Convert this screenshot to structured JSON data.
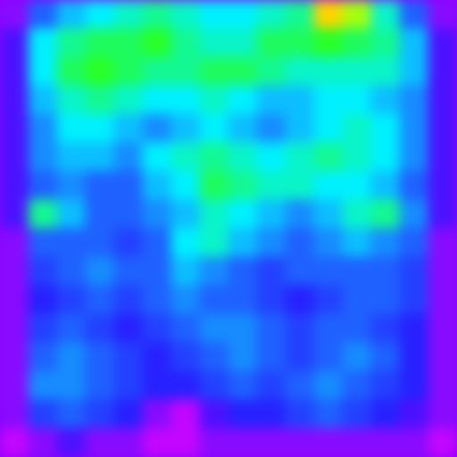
{
  "chart_data": {
    "type": "heatmap",
    "zlim": [
      0,
      1
    ],
    "tick_labels": false,
    "cells": [
      [
        0.1,
        0.3,
        0.4,
        0.45,
        0.5,
        0.55,
        0.5,
        0.45,
        0.45,
        0.5,
        0.55,
        0.85,
        0.75,
        0.5,
        0.3,
        0.1
      ],
      [
        0.15,
        0.45,
        0.55,
        0.6,
        0.6,
        0.65,
        0.55,
        0.5,
        0.5,
        0.6,
        0.6,
        0.65,
        0.6,
        0.55,
        0.4,
        0.15
      ],
      [
        0.15,
        0.45,
        0.6,
        0.65,
        0.6,
        0.55,
        0.55,
        0.6,
        0.6,
        0.55,
        0.5,
        0.5,
        0.5,
        0.5,
        0.4,
        0.15
      ],
      [
        0.15,
        0.4,
        0.5,
        0.55,
        0.5,
        0.45,
        0.45,
        0.5,
        0.45,
        0.4,
        0.4,
        0.45,
        0.45,
        0.4,
        0.35,
        0.15
      ],
      [
        0.15,
        0.35,
        0.45,
        0.45,
        0.4,
        0.35,
        0.4,
        0.45,
        0.4,
        0.35,
        0.4,
        0.45,
        0.5,
        0.45,
        0.35,
        0.15
      ],
      [
        0.15,
        0.35,
        0.4,
        0.4,
        0.35,
        0.45,
        0.5,
        0.55,
        0.5,
        0.45,
        0.5,
        0.55,
        0.5,
        0.45,
        0.35,
        0.15
      ],
      [
        0.15,
        0.3,
        0.35,
        0.3,
        0.3,
        0.4,
        0.45,
        0.6,
        0.55,
        0.5,
        0.5,
        0.45,
        0.45,
        0.4,
        0.3,
        0.15
      ],
      [
        0.15,
        0.55,
        0.4,
        0.3,
        0.3,
        0.35,
        0.4,
        0.5,
        0.45,
        0.4,
        0.35,
        0.4,
        0.5,
        0.55,
        0.35,
        0.15
      ],
      [
        0.1,
        0.3,
        0.3,
        0.3,
        0.25,
        0.3,
        0.45,
        0.5,
        0.4,
        0.35,
        0.3,
        0.35,
        0.4,
        0.35,
        0.3,
        0.1
      ],
      [
        0.1,
        0.25,
        0.3,
        0.35,
        0.3,
        0.3,
        0.4,
        0.35,
        0.3,
        0.25,
        0.3,
        0.3,
        0.3,
        0.3,
        0.25,
        0.1
      ],
      [
        0.1,
        0.2,
        0.25,
        0.3,
        0.25,
        0.3,
        0.35,
        0.3,
        0.3,
        0.25,
        0.2,
        0.25,
        0.3,
        0.3,
        0.25,
        0.1
      ],
      [
        0.1,
        0.25,
        0.3,
        0.25,
        0.2,
        0.25,
        0.3,
        0.35,
        0.35,
        0.3,
        0.25,
        0.3,
        0.3,
        0.25,
        0.2,
        0.1
      ],
      [
        0.1,
        0.3,
        0.35,
        0.3,
        0.25,
        0.2,
        0.25,
        0.3,
        0.35,
        0.3,
        0.25,
        0.3,
        0.35,
        0.3,
        0.2,
        0.1
      ],
      [
        0.1,
        0.35,
        0.35,
        0.3,
        0.25,
        0.2,
        0.2,
        0.25,
        0.3,
        0.25,
        0.3,
        0.35,
        0.3,
        0.25,
        0.2,
        0.1
      ],
      [
        0.1,
        0.25,
        0.3,
        0.25,
        0.2,
        0.1,
        0.05,
        0.15,
        0.2,
        0.2,
        0.25,
        0.3,
        0.25,
        0.2,
        0.15,
        0.1
      ],
      [
        0.05,
        0.1,
        0.15,
        0.1,
        0.1,
        0.05,
        0.05,
        0.1,
        0.1,
        0.1,
        0.1,
        0.1,
        0.1,
        0.1,
        0.1,
        0.05
      ]
    ]
  }
}
